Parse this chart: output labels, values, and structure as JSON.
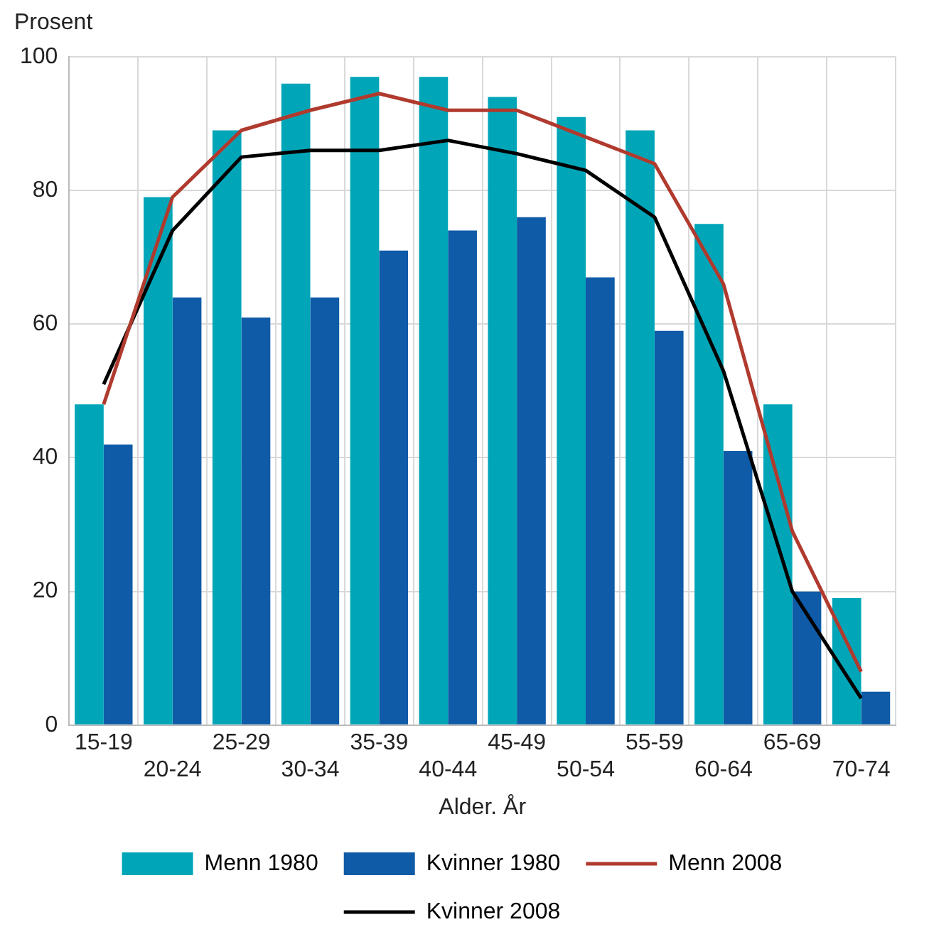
{
  "chart_data": {
    "type": "bar",
    "ylabel": "Prosent",
    "xlabel": "Alder. År",
    "categories": [
      "15-19",
      "20-24",
      "25-29",
      "30-34",
      "35-39",
      "40-44",
      "45-49",
      "50-54",
      "55-59",
      "60-64",
      "65-69",
      "70-74"
    ],
    "series": [
      {
        "name": "Menn 1980",
        "color": "#00a6b8",
        "values": [
          48,
          79,
          89,
          96,
          97,
          97,
          94,
          91,
          89,
          75,
          48,
          19
        ]
      },
      {
        "name": "Kvinner 1980",
        "color": "#0f5ba8",
        "values": [
          42,
          64,
          61,
          64,
          71,
          74,
          76,
          67,
          59,
          41,
          20,
          5
        ]
      },
      {
        "name": "Menn 2008",
        "type": "line",
        "color": "#b03a2e",
        "values": [
          48,
          79,
          89,
          92,
          94.5,
          92,
          92,
          88,
          84,
          66,
          29,
          8
        ]
      },
      {
        "name": "Kvinner 2008",
        "type": "line",
        "color": "#000000",
        "values": [
          51,
          74,
          85,
          86,
          86,
          87.5,
          85.5,
          83,
          76,
          53,
          20,
          4
        ]
      }
    ],
    "ylim": [
      0,
      100
    ],
    "yticks": [
      0,
      20,
      40,
      60,
      80,
      100
    ],
    "grid": true,
    "legend": "bottom",
    "marker": "none",
    "line_style": "solid"
  }
}
